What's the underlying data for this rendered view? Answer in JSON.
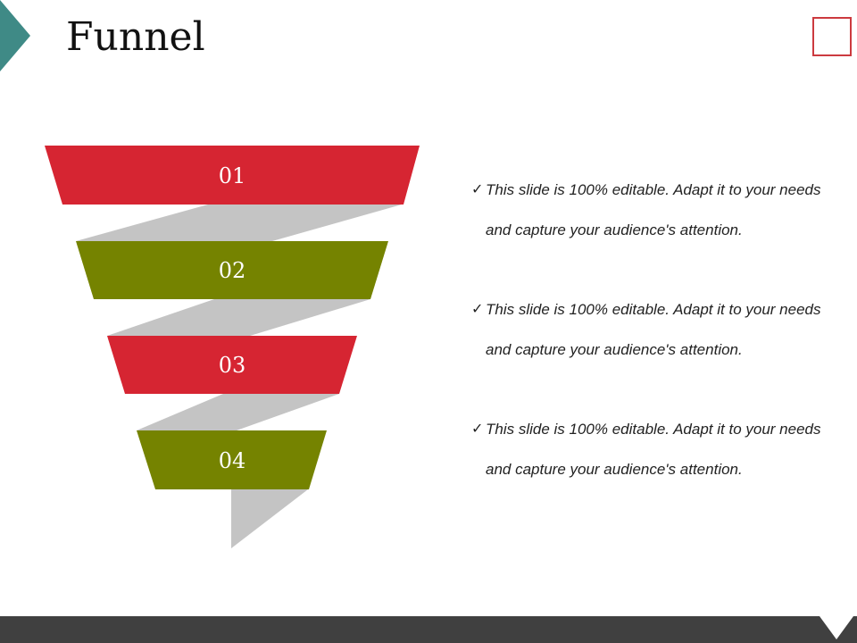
{
  "slide": {
    "title": "Funnel"
  },
  "funnel": {
    "stages": [
      {
        "label": "01",
        "color": "#d62532"
      },
      {
        "label": "02",
        "color": "#758300"
      },
      {
        "label": "03",
        "color": "#d62532"
      },
      {
        "label": "04",
        "color": "#758300"
      }
    ],
    "ribbon_color": "#c4c4c4"
  },
  "bullets": [
    {
      "check": "✓",
      "text": "This slide is 100% editable. Adapt it to your needs and capture your audience's attention."
    },
    {
      "check": "✓",
      "text": "This slide is 100% editable. Adapt it to your needs and capture your audience's attention."
    },
    {
      "check": "✓",
      "text": "This slide is 100% editable. Adapt it to your needs and capture your audience's attention."
    }
  ],
  "colors": {
    "accent_teal": "#3f8a86",
    "frame_red": "#cc3a3f",
    "bottom_bar": "#404040"
  }
}
